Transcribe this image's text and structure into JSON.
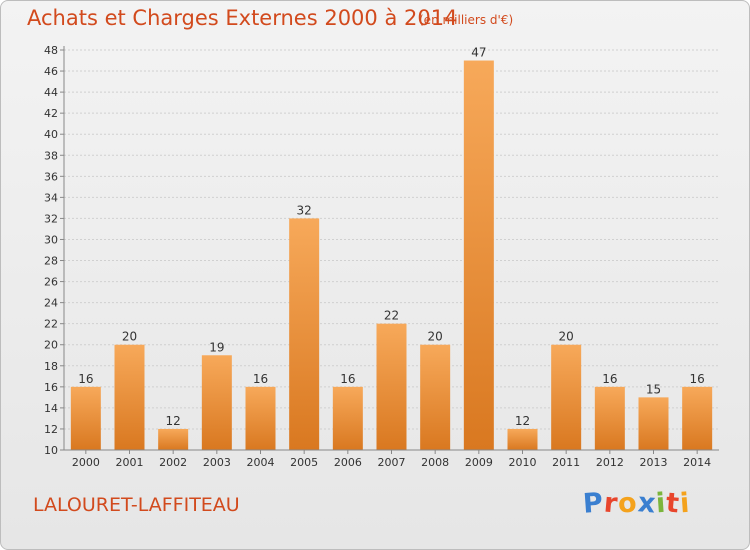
{
  "title": "Achats et Charges Externes 2000 à 2014",
  "subtitle": "(en milliers d'€)",
  "commune": "LALOURET-LAFFITEAU",
  "logo": {
    "letters": [
      "P",
      "r",
      "o",
      "x",
      "i",
      "t",
      "i"
    ],
    "colors": [
      "#3a7fd0",
      "#e8452c",
      "#f4a21c",
      "#3a7fd0",
      "#7bb53c",
      "#e8452c",
      "#f4a21c"
    ]
  },
  "colors": {
    "bar_top": "#f7a95a",
    "bar_bottom": "#d97820",
    "text": "#d24a1d",
    "axis": "#888888"
  },
  "chart_data": {
    "type": "bar",
    "categories": [
      "2000",
      "2001",
      "2002",
      "2003",
      "2004",
      "2005",
      "2006",
      "2007",
      "2008",
      "2009",
      "2010",
      "2011",
      "2012",
      "2013",
      "2014"
    ],
    "values": [
      16,
      20,
      12,
      19,
      16,
      32,
      16,
      22,
      20,
      47,
      12,
      20,
      16,
      15,
      16
    ],
    "title": "Achats et Charges Externes 2000 à 2014",
    "xlabel": "",
    "ylabel": "",
    "ylim": [
      10,
      48
    ],
    "yticks": [
      10,
      12,
      14,
      16,
      18,
      20,
      22,
      24,
      26,
      28,
      30,
      32,
      34,
      36,
      38,
      40,
      42,
      44,
      46,
      48
    ],
    "grid": true
  }
}
